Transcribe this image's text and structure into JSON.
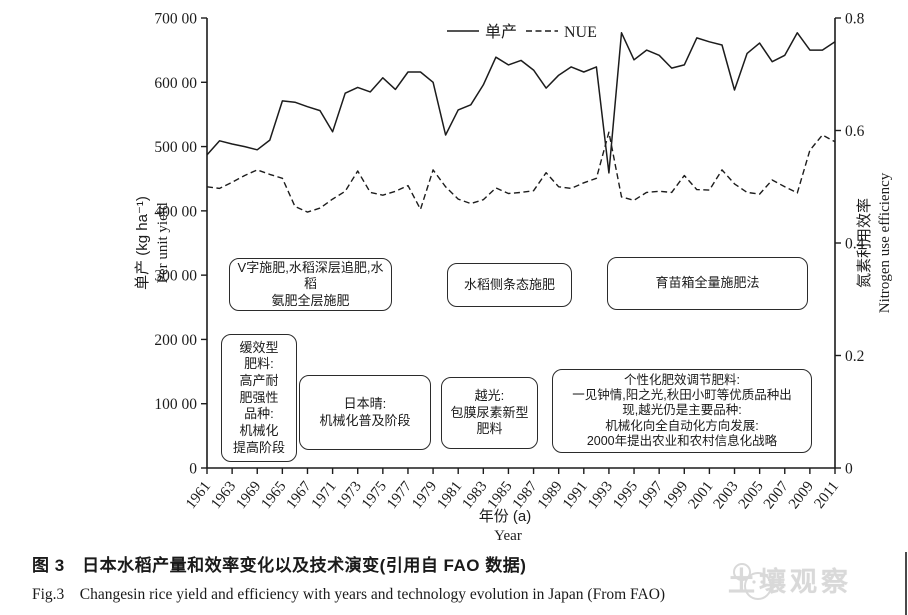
{
  "figure": {
    "caption_zh": "图 3　日本水稻产量和效率变化以及技术演变(引用自 FAO 数据)",
    "caption_en": "Fig.3　Changesin rice yield and efficiency with years and technology evolution in Japan (From FAO)"
  },
  "watermark": {
    "text": "土壤观察"
  },
  "chart_data": {
    "type": "line",
    "title": "",
    "x": [
      1961,
      1962,
      1963,
      1964,
      1965,
      1966,
      1967,
      1968,
      1969,
      1970,
      1971,
      1972,
      1973,
      1974,
      1975,
      1976,
      1977,
      1978,
      1979,
      1980,
      1981,
      1982,
      1983,
      1984,
      1985,
      1986,
      1987,
      1988,
      1989,
      1990,
      1991,
      1992,
      1993,
      1994,
      1995,
      1996,
      1997,
      1998,
      1999,
      2000,
      2001,
      2002,
      2003,
      2004,
      2005,
      2006,
      2007,
      2008,
      2009,
      2010,
      2011
    ],
    "series": [
      {
        "name": "单产",
        "style": "solid",
        "axis": "left",
        "values": [
          4870,
          5090,
          5040,
          5000,
          4950,
          5100,
          5710,
          5690,
          5620,
          5560,
          5230,
          5830,
          5920,
          5850,
          6070,
          5890,
          6160,
          6160,
          6000,
          5180,
          5570,
          5650,
          5960,
          6390,
          6270,
          6340,
          6190,
          5910,
          6110,
          6240,
          6160,
          6240,
          4590,
          6770,
          6350,
          6500,
          6420,
          6220,
          6270,
          6690,
          6630,
          6580,
          5880,
          6450,
          6610,
          6320,
          6420,
          6770,
          6500,
          6500,
          6630
        ]
      },
      {
        "name": "NUE",
        "style": "dashed",
        "axis": "right",
        "values": [
          0.5,
          0.497,
          0.508,
          0.52,
          0.53,
          0.522,
          0.515,
          0.465,
          0.455,
          0.462,
          0.478,
          0.492,
          0.528,
          0.49,
          0.485,
          0.492,
          0.502,
          0.46,
          0.53,
          0.5,
          0.478,
          0.47,
          0.477,
          0.498,
          0.488,
          0.49,
          0.493,
          0.525,
          0.5,
          0.497,
          0.507,
          0.515,
          0.597,
          0.482,
          0.476,
          0.49,
          0.492,
          0.49,
          0.52,
          0.495,
          0.494,
          0.53,
          0.505,
          0.49,
          0.487,
          0.512,
          0.5,
          0.489,
          0.565,
          0.592,
          0.58
        ]
      }
    ],
    "legend": [
      {
        "label": "单产",
        "style": "solid"
      },
      {
        "label": "NUE",
        "style": "dashed"
      }
    ],
    "left_axis": {
      "label_zh": "单产 (kg ha⁻¹)",
      "label_en": "Per unit yield",
      "range": [
        0,
        7000
      ],
      "tick_labels": [
        "0",
        "100 00",
        "200 00",
        "300 00",
        "400 00",
        "500 00",
        "600 00",
        "700 00"
      ]
    },
    "right_axis": {
      "label_zh": "氮素利用效率",
      "label_en": "Nitrogen use efficiency",
      "range": [
        0,
        0.8
      ],
      "tick_labels": [
        "0",
        "0.2",
        "0.4",
        "0.6",
        "0.8"
      ]
    },
    "x_axis": {
      "label_zh": "年份 (a)",
      "label_en": "Year",
      "tick_labels": [
        "1961",
        "1963",
        "1969",
        "1965",
        "1967",
        "1971",
        "1973",
        "1975",
        "1977",
        "1979",
        "1981",
        "1983",
        "1985",
        "1987",
        "1989",
        "1991",
        "1993",
        "1995",
        "1997",
        "1999",
        "2001",
        "2003",
        "2005",
        "2007",
        "2009",
        "2011"
      ]
    },
    "grid": false,
    "legend_position": "top-center",
    "annotations": [
      {
        "text": "V字施肥,水稻深层追肥,水稻\n氨肥全层施肥"
      },
      {
        "text": "水稻侧条态施肥"
      },
      {
        "text": "育苗箱全量施肥法"
      },
      {
        "text": "缓效型\n肥料:\n高产耐\n肥强性\n品种:\n机械化\n提高阶段"
      },
      {
        "text": "日本晴:\n机械化普及阶段"
      },
      {
        "text": "越光:\n包膜尿素新型\n肥料"
      },
      {
        "text": "个性化肥效调节肥料:\n一见钟情,阳之光,秋田小町等优质品种出\n现,越光仍是主要品种:\n机械化向全自动化方向发展:\n2000年提出农业和农村信息化战略"
      }
    ]
  }
}
